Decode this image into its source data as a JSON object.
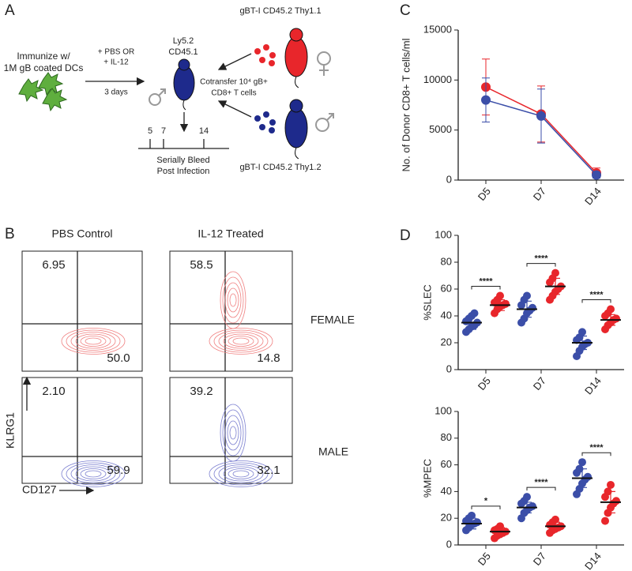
{
  "panel_labels": [
    "A",
    "B",
    "C",
    "D"
  ],
  "panel_a": {
    "immunize": [
      "Immunize w/",
      "1M gB coated DCs"
    ],
    "treatment": [
      "+ PBS OR",
      "+ IL-12"
    ],
    "duration": "3 days",
    "host": [
      "Ly5.2",
      "CD45.1"
    ],
    "cotransfer": [
      "Cotransfer 10⁴ gB+",
      "CD8+ T cells"
    ],
    "donor_female": "gBT-I CD45.2 Thy1.1",
    "donor_male": "gBT-I CD45.2 Thy1.2",
    "timepoints": [
      "5",
      "7",
      "14"
    ],
    "bleed": [
      "Serially Bleed",
      "Post Infection"
    ]
  },
  "panel_b": {
    "columns": [
      "PBS Control",
      "IL-12 Treated"
    ],
    "rows": [
      "FEMALE",
      "MALE"
    ],
    "x_axis": "CD127",
    "y_axis": "KLRG1",
    "quadrants": [
      [
        "6.95",
        "50.0"
      ],
      [
        "58.5",
        "14.8"
      ],
      [
        "2.10",
        "59.9"
      ],
      [
        "39.2",
        "32.1"
      ]
    ]
  },
  "chart_data": [
    {
      "type": "line",
      "ylabel": "No. of Donor CD8+ T cells/ml",
      "categories": [
        "D5",
        "D7",
        "D14"
      ],
      "ylim": [
        0,
        15000
      ],
      "yticks": [
        0,
        5000,
        10000,
        15000
      ],
      "series": [
        {
          "color": "#e8262b",
          "values": [
            9300,
            6600,
            700
          ],
          "errors": [
            2800,
            2800,
            500
          ]
        },
        {
          "color": "#3b4ea8",
          "values": [
            8000,
            6400,
            500
          ],
          "errors": [
            2200,
            2700,
            300
          ]
        }
      ]
    },
    {
      "type": "dot",
      "ylabel": "%SLEC",
      "categories": [
        "D5",
        "D7",
        "D14"
      ],
      "ylim": [
        0,
        100
      ],
      "yticks": [
        0,
        20,
        40,
        60,
        80,
        100
      ],
      "annotations": [
        "****",
        "****",
        "****"
      ],
      "series": [
        {
          "color": "#3b4ea8",
          "means": [
            35,
            45,
            20
          ],
          "errors": [
            5,
            6,
            5
          ],
          "points": [
            [
              28,
              30,
              32,
              33,
              35,
              36,
              38,
              40,
              42
            ],
            [
              35,
              38,
              42,
              44,
              46,
              48,
              52,
              55
            ],
            [
              10,
              14,
              17,
              19,
              20,
              22,
              24,
              28
            ]
          ]
        },
        {
          "color": "#e8262b",
          "means": [
            48,
            62,
            37
          ],
          "errors": [
            4,
            6,
            4
          ],
          "points": [
            [
              42,
              45,
              47,
              48,
              49,
              50,
              52,
              55
            ],
            [
              52,
              55,
              58,
              60,
              62,
              65,
              68,
              72
            ],
            [
              30,
              33,
              35,
              37,
              38,
              40,
              42,
              45
            ]
          ]
        }
      ]
    },
    {
      "type": "dot",
      "ylabel": "%MPEC",
      "categories": [
        "D5",
        "D7",
        "D14"
      ],
      "ylim": [
        0,
        100
      ],
      "yticks": [
        0,
        20,
        40,
        60,
        80,
        100
      ],
      "annotations": [
        "*",
        "****",
        "****"
      ],
      "series": [
        {
          "color": "#3b4ea8",
          "means": [
            16,
            28,
            50
          ],
          "errors": [
            4,
            4,
            7
          ],
          "points": [
            [
              11,
              13,
              15,
              16,
              17,
              18,
              20,
              22
            ],
            [
              20,
              24,
              26,
              28,
              29,
              31,
              33,
              36
            ],
            [
              38,
              42,
              46,
              49,
              51,
              54,
              57,
              62
            ]
          ]
        },
        {
          "color": "#e8262b",
          "means": [
            10,
            14,
            32
          ],
          "errors": [
            3,
            3,
            8
          ],
          "points": [
            [
              5,
              7,
              8,
              9,
              10,
              11,
              12,
              14
            ],
            [
              9,
              11,
              12,
              13,
              14,
              15,
              17,
              19
            ],
            [
              18,
              24,
              28,
              31,
              33,
              36,
              40,
              45
            ]
          ]
        }
      ]
    }
  ]
}
